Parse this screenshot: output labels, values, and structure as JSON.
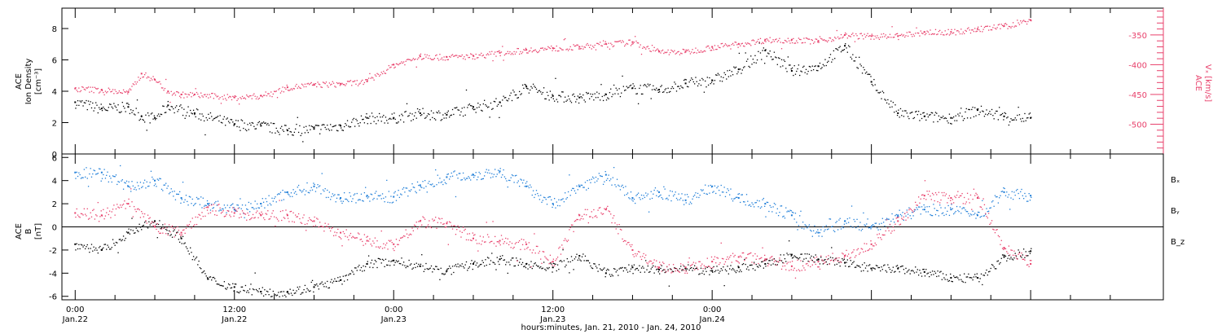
{
  "colors": {
    "black": "#000000",
    "pink": "#e8406b",
    "blue": "#1f7ed8"
  },
  "chart_data": [
    {
      "type": "scatter",
      "panel": "top",
      "ylabel_lines": [
        "ACE",
        "Ion Density",
        "[cm⁻³]"
      ],
      "ylim": [
        0,
        9.3
      ],
      "yticks": [
        0,
        2,
        4,
        6,
        8
      ],
      "y2label_lines": [
        "ACE",
        "Vₓ [km/s]"
      ],
      "y2lim": [
        -550,
        -305
      ],
      "y2ticks": [
        -350,
        -400,
        -450,
        -500
      ],
      "grid": false,
      "x_unit": "hours since 2010-01-22 00:00",
      "series": [
        {
          "name": "Ion Density",
          "axis": "left",
          "color": "#000000",
          "x": [
            0,
            2,
            4,
            5,
            6,
            7,
            9,
            12,
            14,
            16,
            18,
            20,
            22,
            24,
            26,
            28,
            30,
            32,
            34,
            36,
            38,
            40,
            42,
            44,
            46,
            48,
            50,
            52,
            54,
            56,
            58,
            60,
            62,
            64,
            66,
            68,
            70,
            72
          ],
          "y": [
            3.3,
            2.9,
            3.0,
            2.4,
            2.3,
            3.1,
            2.6,
            1.9,
            1.8,
            1.5,
            1.6,
            1.8,
            2.3,
            2.3,
            2.6,
            2.5,
            3.0,
            3.3,
            4.3,
            3.7,
            3.6,
            3.8,
            4.2,
            4.1,
            4.5,
            4.7,
            5.4,
            6.6,
            5.3,
            5.6,
            6.9,
            4.6,
            2.6,
            2.4,
            2.3,
            2.8,
            2.4,
            2.3
          ]
        },
        {
          "name": "Vx",
          "axis": "right",
          "color": "#e8406b",
          "x": [
            0,
            2,
            4,
            5,
            6,
            7,
            8,
            9,
            12,
            14,
            16,
            18,
            20,
            22,
            24,
            26,
            28,
            30,
            32,
            34,
            36,
            38,
            40,
            42,
            44,
            46,
            48,
            50,
            52,
            54,
            56,
            58,
            60,
            62,
            64,
            66,
            68,
            70,
            72
          ],
          "y": [
            -440,
            -442,
            -446,
            -415,
            -425,
            -445,
            -450,
            -450,
            -455,
            -452,
            -438,
            -433,
            -432,
            -428,
            -400,
            -386,
            -387,
            -385,
            -380,
            -375,
            -372,
            -370,
            -365,
            -362,
            -378,
            -378,
            -370,
            -365,
            -358,
            -358,
            -360,
            -350,
            -352,
            -352,
            -345,
            -345,
            -340,
            -335,
            -325
          ]
        }
      ]
    },
    {
      "type": "scatter",
      "panel": "bottom",
      "ylabel_lines": [
        "ACE",
        "B",
        "[nT]"
      ],
      "ylim": [
        -6.3,
        6.3
      ],
      "yticks": [
        6,
        4,
        2,
        0,
        -2,
        -4,
        -6
      ],
      "grid": false,
      "zero_line": true,
      "x_unit": "hours since 2010-01-22 00:00",
      "legend_location": "right",
      "series": [
        {
          "name": "Bₓ",
          "color": "#000000",
          "x": [
            0,
            2,
            4,
            6,
            8,
            10,
            12,
            14,
            16,
            18,
            20,
            22,
            24,
            26,
            28,
            30,
            32,
            34,
            36,
            38,
            40,
            42,
            44,
            46,
            48,
            50,
            52,
            54,
            56,
            58,
            60,
            62,
            64,
            66,
            68,
            70,
            72
          ],
          "y": [
            -1.5,
            -2.0,
            -0.5,
            0.5,
            -1.0,
            -4.5,
            -5.2,
            -5.6,
            -5.6,
            -5.2,
            -4.6,
            -3.2,
            -2.9,
            -3.4,
            -3.8,
            -3.2,
            -2.8,
            -3.2,
            -3.5,
            -2.5,
            -4.0,
            -3.5,
            -3.7,
            -3.6,
            -3.8,
            -3.5,
            -3.2,
            -2.4,
            -2.8,
            -3.1,
            -3.6,
            -3.6,
            -3.9,
            -4.4,
            -4.4,
            -2.6,
            -2.1
          ]
        },
        {
          "name": "Bᵧ",
          "color": "#1f7ed8",
          "x": [
            0,
            2,
            4,
            6,
            8,
            10,
            12,
            14,
            16,
            18,
            20,
            22,
            24,
            26,
            28,
            30,
            32,
            34,
            36,
            38,
            40,
            42,
            44,
            46,
            48,
            50,
            52,
            54,
            56,
            58,
            60,
            62,
            64,
            66,
            68,
            70,
            72
          ],
          "y": [
            4.7,
            4.7,
            3.5,
            4.0,
            2.5,
            2.0,
            1.5,
            2.0,
            3.0,
            3.5,
            2.5,
            2.7,
            2.6,
            3.6,
            4.3,
            4.5,
            4.8,
            3.5,
            2.0,
            3.5,
            4.5,
            2.5,
            3.0,
            2.3,
            3.5,
            2.5,
            2.0,
            1.0,
            -0.5,
            0.5,
            0.0,
            1.0,
            1.5,
            1.5,
            1.0,
            3.0,
            2.7
          ]
        },
        {
          "name": "B_z",
          "color": "#e8406b",
          "x": [
            0,
            2,
            4,
            6,
            8,
            10,
            12,
            14,
            16,
            18,
            20,
            22,
            24,
            26,
            28,
            30,
            32,
            34,
            36,
            38,
            40,
            42,
            44,
            46,
            48,
            50,
            52,
            54,
            56,
            58,
            60,
            62,
            64,
            66,
            68,
            70,
            72
          ],
          "y": [
            1.2,
            1.0,
            2.0,
            0.0,
            -0.5,
            1.7,
            1.2,
            1.0,
            1.0,
            0.5,
            -0.5,
            -1.2,
            -1.5,
            0.5,
            0.3,
            -1.0,
            -1.2,
            -1.5,
            -3.0,
            1.0,
            1.5,
            -2.0,
            -3.5,
            -3.5,
            -3.0,
            -2.6,
            -2.8,
            -3.4,
            -3.0,
            -2.5,
            -1.5,
            0.5,
            2.7,
            2.5,
            2.5,
            -1.8,
            -3.2
          ]
        }
      ]
    }
  ],
  "xaxis": {
    "xlim": [
      -1,
      82
    ],
    "major_ticks": [
      {
        "x": 0,
        "time": "0:00",
        "date": "Jan.22"
      },
      {
        "x": 12,
        "time": "12:00",
        "date": "Jan.22"
      },
      {
        "x": 24,
        "time": "0:00",
        "date": "Jan.23"
      },
      {
        "x": 36,
        "time": "12:00",
        "date": "Jan.23"
      },
      {
        "x": 48,
        "time": "0:00",
        "date": "Jan.24"
      }
    ],
    "title": "hours:minutes, Jan. 21, 2010 - Jan. 24, 2010"
  }
}
